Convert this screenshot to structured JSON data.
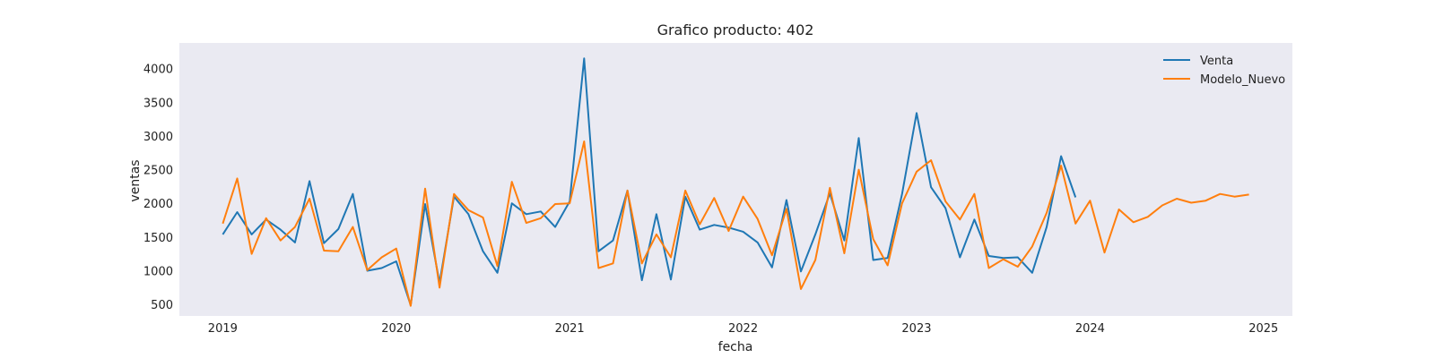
{
  "chart_data": {
    "type": "line",
    "title": "Grafico producto: 402",
    "xlabel": "fecha",
    "ylabel": "ventas",
    "xlim": [
      "2018-10",
      "2025-03"
    ],
    "ylim": [
      330,
      4380
    ],
    "x_ticks": [
      "2019",
      "2020",
      "2021",
      "2022",
      "2023",
      "2024",
      "2025"
    ],
    "y_ticks": [
      500,
      1000,
      1500,
      2000,
      2500,
      3000,
      3500,
      4000
    ],
    "grid": false,
    "legend_position": "top-right",
    "background": "#eaeaf2",
    "series": [
      {
        "name": "Venta",
        "color": "#1f77b4",
        "start": "2019-01",
        "values": [
          1540,
          1870,
          1540,
          1760,
          1610,
          1420,
          2330,
          1410,
          1620,
          2140,
          1000,
          1040,
          1140,
          490,
          1990,
          820,
          2100,
          1840,
          1290,
          970,
          2000,
          1840,
          1880,
          1650,
          2030,
          4150,
          1290,
          1450,
          2190,
          860,
          1840,
          870,
          2100,
          1610,
          1680,
          1640,
          1580,
          1420,
          1050,
          2050,
          990,
          1540,
          2150,
          1450,
          2970,
          1160,
          1190,
          2140,
          3340,
          2240,
          1930,
          1200,
          1760,
          1220,
          1190,
          1200,
          970,
          1650,
          2700,
          2090
        ]
      },
      {
        "name": "Modelo_Nuevo",
        "color": "#ff7f0e",
        "start": "2019-01",
        "values": [
          1700,
          2370,
          1250,
          1780,
          1450,
          1650,
          2070,
          1300,
          1290,
          1650,
          1010,
          1200,
          1330,
          480,
          2220,
          750,
          2140,
          1900,
          1790,
          1070,
          2320,
          1710,
          1780,
          1990,
          2000,
          2920,
          1040,
          1110,
          2190,
          1110,
          1540,
          1200,
          2190,
          1690,
          2080,
          1590,
          2100,
          1770,
          1230,
          1920,
          730,
          1160,
          2230,
          1260,
          2500,
          1470,
          1080,
          2000,
          2470,
          2640,
          2030,
          1760,
          2140,
          1040,
          1170,
          1060,
          1360,
          1860,
          2560,
          1700,
          2040,
          1270,
          1910,
          1720,
          1800,
          1970,
          2070,
          2010,
          2040,
          2140,
          2100,
          2130
        ]
      }
    ]
  }
}
